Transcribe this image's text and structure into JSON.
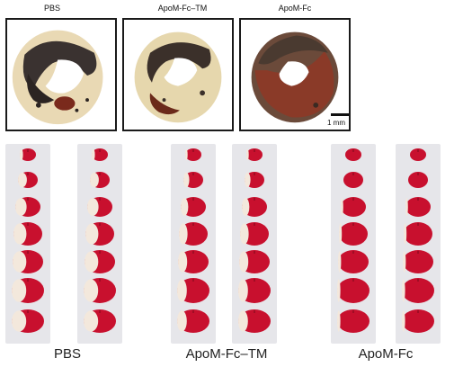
{
  "top_labels": [
    "PBS",
    "ApoM-Fc–TM",
    "ApoM-Fc"
  ],
  "scale_label": "1 mm",
  "group_labels": [
    "PBS",
    "ApoM-Fc–TM",
    "ApoM-Fc"
  ],
  "colors": {
    "tissue_red": "#c8102e",
    "infarct_pale": "#f3e8dc",
    "strip_bg": "#e6e6ea",
    "frame": "#1a1a1a"
  }
}
